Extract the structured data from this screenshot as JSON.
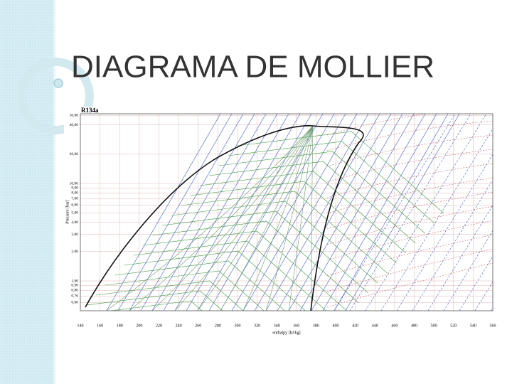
{
  "slide": {
    "title": "DIAGRAMA DE MOLLIER"
  },
  "diagram": {
    "title": "R134a",
    "xlabel": "enthalpy [kJ/kg]",
    "ylabel": "Pressure [bar]",
    "log_y": true,
    "xticks": [
      140,
      160,
      180,
      200,
      220,
      240,
      260,
      280,
      300,
      320,
      340,
      360,
      380,
      400,
      420,
      440,
      460,
      480,
      500,
      520,
      540,
      560
    ],
    "yticks": [
      {
        "value": 50,
        "label": "50,00"
      },
      {
        "value": 40,
        "label": "40,00"
      },
      {
        "value": 20,
        "label": "20,00"
      },
      {
        "value": 10,
        "label": "10,00"
      },
      {
        "value": 9,
        "label": "9,00"
      },
      {
        "value": 8,
        "label": "8,00"
      },
      {
        "value": 7,
        "label": "7,00"
      },
      {
        "value": 6,
        "label": "6,00"
      },
      {
        "value": 5,
        "label": "5,00"
      },
      {
        "value": 4,
        "label": "4,00"
      },
      {
        "value": 3,
        "label": "3,00"
      },
      {
        "value": 2,
        "label": "2,00"
      },
      {
        "value": 1,
        "label": "1,00"
      },
      {
        "value": 0.9,
        "label": "0,90"
      },
      {
        "value": 0.8,
        "label": "0,80"
      },
      {
        "value": 0.7,
        "label": "0,70"
      },
      {
        "value": 0.6,
        "label": "0,60"
      }
    ]
  }
}
